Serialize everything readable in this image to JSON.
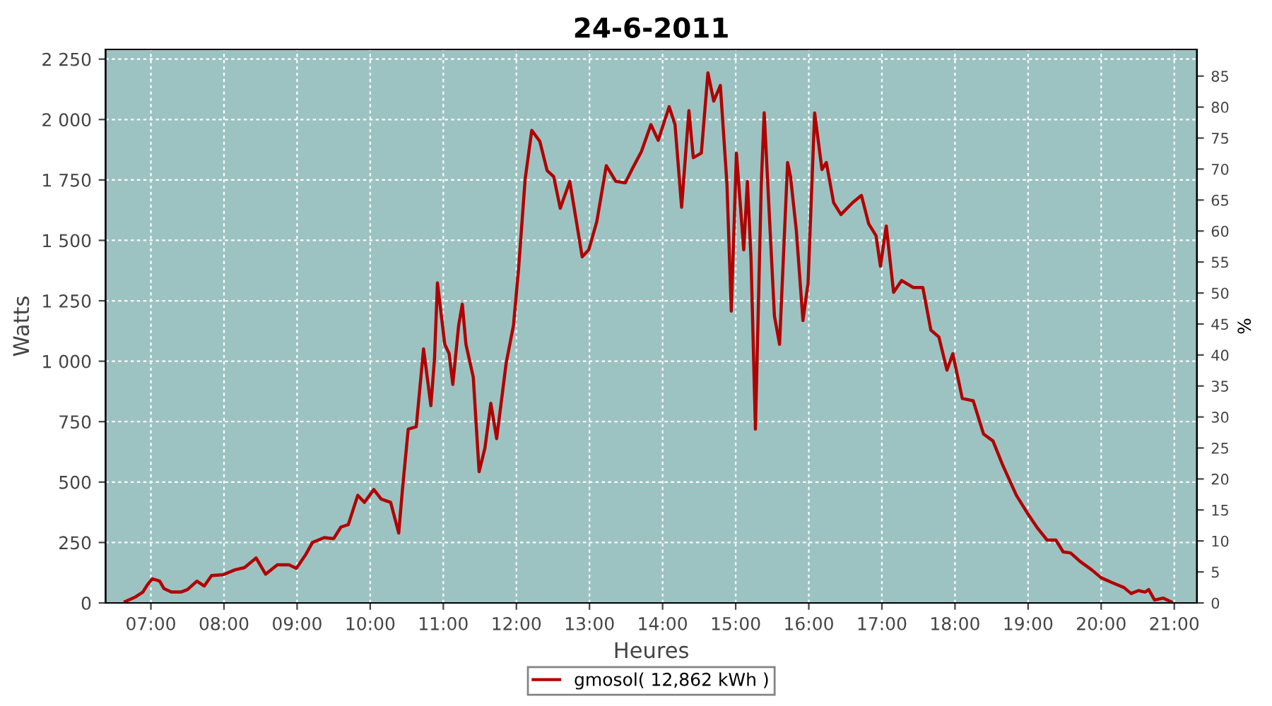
{
  "chart_data": {
    "type": "line",
    "title": "24-6-2011",
    "xlabel": "Heures",
    "ylabel": "Watts",
    "y2label": "%",
    "xlim": [
      6.38,
      21.31
    ],
    "xticks": [
      {
        "value": 7,
        "label": "07:00"
      },
      {
        "value": 8,
        "label": "08:00"
      },
      {
        "value": 9,
        "label": "09:00"
      },
      {
        "value": 10,
        "label": "10:00"
      },
      {
        "value": 11,
        "label": "11:00"
      },
      {
        "value": 12,
        "label": "12:00"
      },
      {
        "value": 13,
        "label": "13:00"
      },
      {
        "value": 14,
        "label": "14:00"
      },
      {
        "value": 15,
        "label": "15:00"
      },
      {
        "value": 16,
        "label": "16:00"
      },
      {
        "value": 17,
        "label": "17:00"
      },
      {
        "value": 18,
        "label": "18:00"
      },
      {
        "value": 19,
        "label": "19:00"
      },
      {
        "value": 20,
        "label": "20:00"
      },
      {
        "value": 21,
        "label": "21:00"
      }
    ],
    "ylim": [
      0,
      2290
    ],
    "yticks": [
      0,
      250,
      500,
      750,
      {
        "value": 1000,
        "label": "1 000"
      },
      {
        "value": 1250,
        "label": "1 250"
      },
      {
        "value": 1500,
        "label": "1 500"
      },
      {
        "value": 1750,
        "label": "1 750"
      },
      {
        "value": 2000,
        "label": "2 000"
      },
      {
        "value": 2250,
        "label": "2 250"
      }
    ],
    "y2lim": [
      0,
      89.3
    ],
    "y2ticks": [
      0,
      5,
      10,
      15,
      20,
      25,
      30,
      35,
      40,
      45,
      50,
      55,
      60,
      65,
      70,
      75,
      80,
      85
    ],
    "grid": true,
    "legend": "bottom",
    "line_style": "solid",
    "marker": "none",
    "series": [
      {
        "name": "gmosol( 12,862 kWh )",
        "color": "#b00000",
        "x": [
          6.65,
          6.79,
          6.89,
          6.95,
          7.02,
          7.12,
          7.18,
          7.28,
          7.41,
          7.5,
          7.63,
          7.73,
          7.83,
          7.99,
          8.15,
          8.28,
          8.44,
          8.57,
          8.73,
          8.89,
          8.99,
          9.12,
          9.21,
          9.37,
          9.5,
          9.6,
          9.7,
          9.83,
          9.92,
          10.05,
          10.15,
          10.28,
          10.39,
          10.44,
          10.52,
          10.63,
          10.73,
          10.78,
          10.83,
          10.88,
          10.92,
          11.02,
          11.08,
          11.13,
          11.21,
          11.26,
          11.31,
          11.41,
          11.49,
          11.57,
          11.65,
          11.73,
          11.86,
          11.96,
          12.03,
          12.12,
          12.21,
          12.32,
          12.42,
          12.51,
          12.6,
          12.73,
          12.81,
          12.9,
          12.99,
          13.1,
          13.23,
          13.36,
          13.49,
          13.58,
          13.71,
          13.84,
          13.94,
          14.09,
          14.17,
          14.26,
          14.36,
          14.42,
          14.53,
          14.62,
          14.7,
          14.79,
          14.88,
          14.94,
          15.01,
          15.11,
          15.16,
          15.21,
          15.27,
          15.35,
          15.39,
          15.53,
          15.6,
          15.71,
          15.75,
          15.83,
          15.92,
          15.99,
          16.03,
          16.08,
          16.13,
          16.18,
          16.24,
          16.34,
          16.44,
          16.6,
          16.72,
          16.82,
          16.92,
          16.98,
          17.06,
          17.16,
          17.27,
          17.43,
          17.56,
          17.67,
          17.78,
          17.89,
          17.97,
          18.1,
          18.25,
          18.39,
          18.52,
          18.65,
          18.84,
          19.0,
          19.13,
          19.26,
          19.38,
          19.48,
          19.58,
          19.71,
          19.87,
          20.0,
          20.15,
          20.31,
          20.41,
          20.51,
          20.6,
          20.65,
          20.73,
          20.85,
          20.96
        ],
        "values": [
          6,
          25,
          45,
          74,
          100,
          90,
          59,
          45,
          45,
          55,
          90,
          70,
          113,
          117,
          137,
          146,
          186,
          119,
          158,
          158,
          143,
          201,
          250,
          270,
          266,
          314,
          324,
          445,
          416,
          469,
          430,
          416,
          289,
          465,
          719,
          729,
          1051,
          934,
          816,
          1012,
          1324,
          1070,
          1031,
          904,
          1148,
          1236,
          1070,
          934,
          543,
          641,
          826,
          680,
          992,
          1148,
          1383,
          1754,
          1955,
          1910,
          1789,
          1764,
          1633,
          1744,
          1598,
          1432,
          1461,
          1578,
          1809,
          1744,
          1738,
          1793,
          1867,
          1979,
          1914,
          2053,
          1979,
          1637,
          2037,
          1842,
          1861,
          2193,
          2076,
          2141,
          1735,
          1207,
          1861,
          1461,
          1744,
          1422,
          719,
          1735,
          2028,
          1187,
          1070,
          1822,
          1764,
          1539,
          1168,
          1324,
          1637,
          2027,
          1910,
          1793,
          1822,
          1656,
          1607,
          1656,
          1686,
          1568,
          1519,
          1393,
          1559,
          1285,
          1334,
          1305,
          1305,
          1129,
          1100,
          963,
          1031,
          846,
          836,
          699,
          670,
          572,
          445,
          367,
          309,
          260,
          260,
          211,
          207,
          172,
          137,
          104,
          84,
          64,
          39,
          51,
          45,
          55,
          12,
          20,
          4
        ]
      }
    ]
  }
}
